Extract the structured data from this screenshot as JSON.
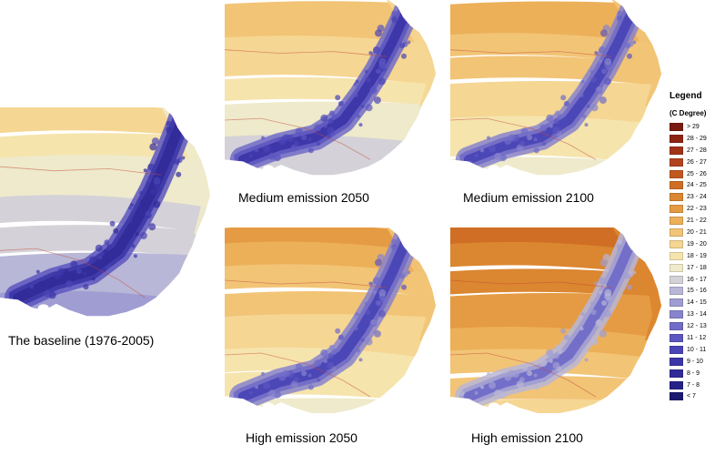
{
  "maps": [
    {
      "id": "baseline",
      "caption": "The baseline (1976-2005)",
      "shift": 0
    },
    {
      "id": "medium-2050",
      "caption": "Medium emission 2050",
      "shift": 1.6
    },
    {
      "id": "medium-2100",
      "caption": "Medium emission 2100",
      "shift": 2.8
    },
    {
      "id": "high-2050",
      "caption": "High emission 2050",
      "shift": 3.0
    },
    {
      "id": "high-2100",
      "caption": "High emission 2100",
      "shift": 5.2
    }
  ],
  "legend": {
    "title": "Legend",
    "unit": "(C Degree)",
    "entries": [
      {
        "label": "> 29",
        "color": "#7a1a10"
      },
      {
        "label": "28 - 29",
        "color": "#8f2414"
      },
      {
        "label": "27 - 28",
        "color": "#a23218"
      },
      {
        "label": "26 - 27",
        "color": "#b2441c"
      },
      {
        "label": "25 - 26",
        "color": "#c1581f"
      },
      {
        "label": "24 - 25",
        "color": "#cf6e24"
      },
      {
        "label": "23 - 24",
        "color": "#db8630"
      },
      {
        "label": "22 - 23",
        "color": "#e59b43"
      },
      {
        "label": "21 - 22",
        "color": "#ecb059"
      },
      {
        "label": "20 - 21",
        "color": "#f2c476"
      },
      {
        "label": "19 - 20",
        "color": "#f5d692"
      },
      {
        "label": "18 - 19",
        "color": "#f6e4ad"
      },
      {
        "label": "17 - 18",
        "color": "#eeeacb"
      },
      {
        "label": "16 - 17",
        "color": "#d4d1d8"
      },
      {
        "label": "15 - 16",
        "color": "#b9b7d7"
      },
      {
        "label": "14 - 15",
        "color": "#a09dd3"
      },
      {
        "label": "13 - 14",
        "color": "#8884cd"
      },
      {
        "label": "12 - 13",
        "color": "#716cc7"
      },
      {
        "label": "11 - 12",
        "color": "#5c56c0"
      },
      {
        "label": "10 - 11",
        "color": "#4a44b6"
      },
      {
        "label": "9 - 10",
        "color": "#3c36a8"
      },
      {
        "label": "8 - 9",
        "color": "#302b98"
      },
      {
        "label": "7 - 8",
        "color": "#262288"
      },
      {
        "label": "< 7",
        "color": "#1c1a70"
      }
    ]
  }
}
